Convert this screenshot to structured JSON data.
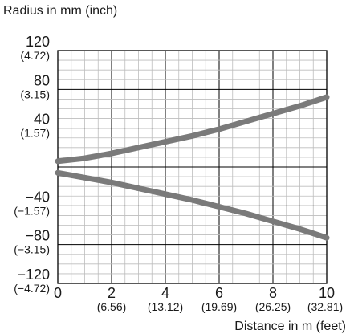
{
  "chart_data": {
    "type": "line",
    "xlabel": "Distance in m (feet)",
    "ylabel": "Radius in mm (inch)",
    "xlim": [
      0,
      10
    ],
    "ylim": [
      -120,
      120
    ],
    "grid": true,
    "x_ticks": [
      {
        "value": 0,
        "label": "0",
        "sub": ""
      },
      {
        "value": 2,
        "label": "2",
        "sub": "(6.56)"
      },
      {
        "value": 4,
        "label": "4",
        "sub": "(13.12)"
      },
      {
        "value": 6,
        "label": "6",
        "sub": "(19.69)"
      },
      {
        "value": 8,
        "label": "8",
        "sub": "(26.25)"
      },
      {
        "value": 10,
        "label": "10",
        "sub": "(32.81)"
      }
    ],
    "y_ticks": [
      {
        "value": 120,
        "label": "120",
        "sub": "(4.72)"
      },
      {
        "value": 80,
        "label": "80",
        "sub": "(3.15)"
      },
      {
        "value": 40,
        "label": "40",
        "sub": "(1.57)"
      },
      {
        "value": -40,
        "label": "−40",
        "sub": "(−1.57)"
      },
      {
        "value": -80,
        "label": "−80",
        "sub": "(−3.15)"
      },
      {
        "value": -120,
        "label": "−120",
        "sub": "(−4.72)"
      }
    ],
    "series": [
      {
        "x": [
          0,
          1,
          2,
          3,
          4,
          5,
          6,
          7,
          8,
          9,
          10
        ],
        "values": [
          6,
          9,
          14,
          20,
          26,
          32,
          39,
          47,
          55,
          63,
          72
        ]
      },
      {
        "x": [
          0,
          1,
          2,
          3,
          4,
          5,
          6,
          7,
          8,
          9,
          10
        ],
        "values": [
          -6,
          -11,
          -16,
          -22,
          -28,
          -34,
          -41,
          -48,
          -56,
          -64,
          -73
        ]
      }
    ],
    "line_color": "#7a7a7a"
  }
}
